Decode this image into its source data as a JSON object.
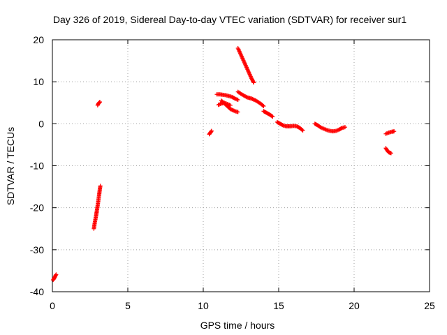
{
  "chart_data": {
    "type": "scatter",
    "title": "Day 326 of 2019, Sidereal Day-to-day VTEC variation (SDTVAR) for receiver sur1",
    "xlabel": "GPS time / hours",
    "ylabel": "SDTVAR / TECUs",
    "xlim": [
      0,
      25
    ],
    "ylim": [
      -40,
      20
    ],
    "xticks": [
      0,
      5,
      10,
      15,
      20,
      25
    ],
    "yticks": [
      -40,
      -30,
      -20,
      -10,
      0,
      10,
      20
    ],
    "grid": true,
    "marker": "plus",
    "color": "#ff0000",
    "series": [
      {
        "segments": [
          [
            [
              0.05,
              -37.2
            ],
            [
              0.1,
              -36.9
            ],
            [
              0.15,
              -36.6
            ],
            [
              0.2,
              -36.2
            ],
            [
              0.25,
              -35.9
            ]
          ],
          [
            [
              2.75,
              -25.0
            ],
            [
              2.8,
              -23.8
            ],
            [
              2.85,
              -22.8
            ],
            [
              2.9,
              -21.8
            ],
            [
              2.95,
              -20.7
            ],
            [
              3.0,
              -19.5
            ],
            [
              3.05,
              -18.2
            ],
            [
              3.1,
              -16.9
            ],
            [
              3.15,
              -15.5
            ],
            [
              3.18,
              -14.8
            ]
          ],
          [
            [
              3.0,
              4.4
            ],
            [
              3.05,
              4.8
            ],
            [
              3.1,
              5.0
            ],
            [
              3.15,
              5.2
            ]
          ],
          [
            [
              10.4,
              -2.5
            ],
            [
              10.45,
              -2.2
            ],
            [
              10.5,
              -2.0
            ],
            [
              10.55,
              -1.7
            ]
          ],
          [
            [
              10.9,
              7.0
            ],
            [
              11.1,
              7.0
            ],
            [
              11.3,
              6.9
            ],
            [
              11.5,
              6.8
            ],
            [
              11.7,
              6.6
            ],
            [
              11.9,
              6.4
            ],
            [
              12.1,
              6.0
            ],
            [
              12.3,
              5.7
            ]
          ],
          [
            [
              11.0,
              4.5
            ],
            [
              11.2,
              4.8
            ],
            [
              11.4,
              5.0
            ],
            [
              11.6,
              4.7
            ],
            [
              11.8,
              4.4
            ]
          ],
          [
            [
              11.2,
              5.5
            ],
            [
              11.5,
              4.5
            ],
            [
              11.8,
              3.5
            ],
            [
              12.1,
              3.0
            ],
            [
              12.3,
              2.8
            ]
          ],
          [
            [
              12.3,
              18.0
            ],
            [
              12.45,
              16.8
            ],
            [
              12.6,
              15.6
            ],
            [
              12.75,
              14.4
            ],
            [
              12.9,
              13.2
            ],
            [
              13.05,
              12.0
            ],
            [
              13.2,
              10.8
            ],
            [
              13.35,
              9.8
            ]
          ],
          [
            [
              12.3,
              7.6
            ],
            [
              12.6,
              6.9
            ],
            [
              12.9,
              6.3
            ],
            [
              13.2,
              6.0
            ],
            [
              13.5,
              5.5
            ],
            [
              13.8,
              4.8
            ],
            [
              14.0,
              4.2
            ]
          ],
          [
            [
              14.0,
              3.0
            ],
            [
              14.2,
              2.6
            ],
            [
              14.4,
              2.2
            ],
            [
              14.6,
              1.7
            ]
          ],
          [
            [
              14.9,
              0.4
            ],
            [
              15.1,
              0.0
            ],
            [
              15.3,
              -0.4
            ],
            [
              15.5,
              -0.6
            ],
            [
              15.8,
              -0.6
            ],
            [
              16.0,
              -0.5
            ],
            [
              16.2,
              -0.6
            ],
            [
              16.4,
              -1.0
            ],
            [
              16.6,
              -1.6
            ]
          ],
          [
            [
              17.4,
              0.0
            ],
            [
              17.6,
              -0.4
            ],
            [
              17.8,
              -0.9
            ],
            [
              18.0,
              -1.2
            ],
            [
              18.2,
              -1.5
            ],
            [
              18.4,
              -1.7
            ],
            [
              18.6,
              -1.8
            ],
            [
              18.8,
              -1.7
            ],
            [
              19.0,
              -1.4
            ],
            [
              19.2,
              -1.0
            ],
            [
              19.4,
              -0.8
            ]
          ],
          [
            [
              22.1,
              -2.4
            ],
            [
              22.3,
              -2.1
            ],
            [
              22.5,
              -1.9
            ],
            [
              22.65,
              -1.8
            ]
          ],
          [
            [
              22.1,
              -5.8
            ],
            [
              22.2,
              -6.4
            ],
            [
              22.3,
              -6.8
            ],
            [
              22.45,
              -7.0
            ]
          ]
        ]
      }
    ]
  }
}
